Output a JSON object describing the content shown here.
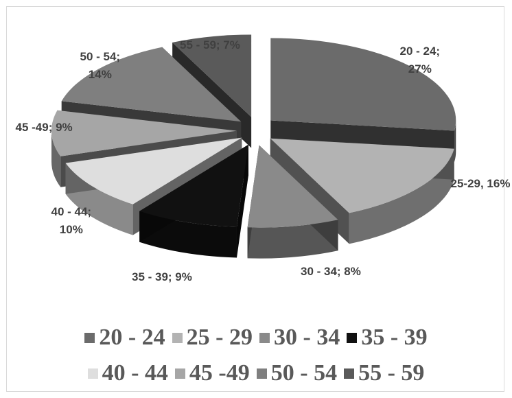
{
  "chart_data": {
    "type": "pie",
    "title": "",
    "categories": [
      "20 - 24",
      "25 - 29",
      "30 - 34",
      "35 - 39",
      "40 - 44",
      "45 -49",
      "50 - 54",
      "55 - 59"
    ],
    "values": [
      27,
      16,
      8,
      9,
      10,
      9,
      14,
      7
    ],
    "data_labels": [
      "20 - 24;\n27%",
      "25-29, 16%",
      "30 - 34; 8%",
      "35 - 39; 9%",
      "40 - 44;\n10%",
      "45 -49; 9%",
      "50 - 54;\n14%",
      "55 - 59; 7%"
    ],
    "colors": [
      "#6b6b6b",
      "#b3b3b3",
      "#8a8a8a",
      "#111111",
      "#dedede",
      "#a6a6a6",
      "#7f7f7f",
      "#5a5a5a"
    ],
    "legend_position": "bottom",
    "exploded": true,
    "three_d": true
  }
}
